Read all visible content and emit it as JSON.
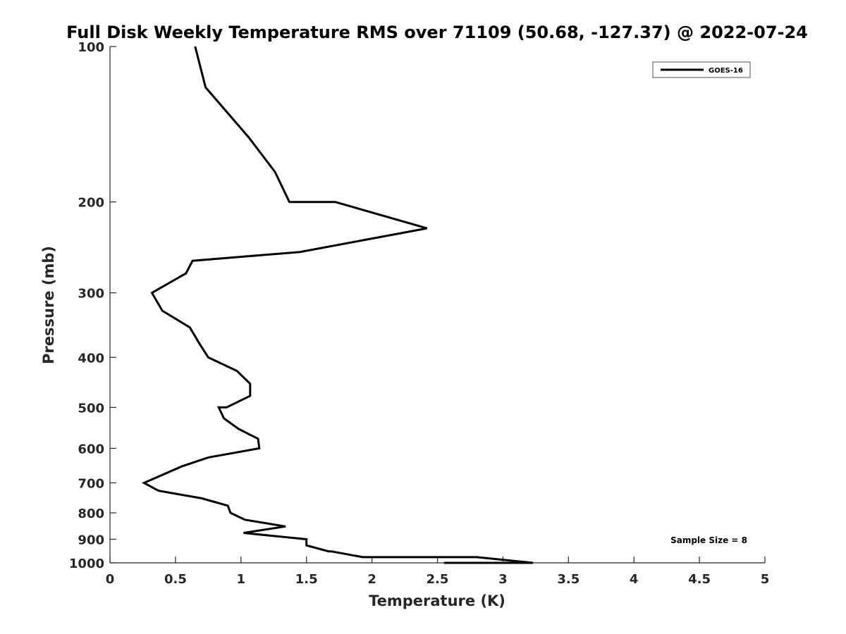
{
  "chart_data": {
    "type": "line",
    "title": "Full Disk Weekly Temperature RMS over 71109 (50.68, -127.37) @ 2022-07-24",
    "xlabel": "Temperature (K)",
    "ylabel": "Pressure (mb)",
    "xlim": [
      0,
      5
    ],
    "ylim": [
      100,
      1000
    ],
    "y_scale": "log",
    "y_reversed": true,
    "x_ticks": [
      "0",
      "0.5",
      "1",
      "1.5",
      "2",
      "2.5",
      "3",
      "3.5",
      "4",
      "4.5",
      "5"
    ],
    "y_ticks": [
      "100",
      "200",
      "300",
      "400",
      "500",
      "600",
      "700",
      "800",
      "900",
      "1000"
    ],
    "grid": false,
    "legend_position": "top-right",
    "annotation": "Sample Size = 8",
    "series": [
      {
        "name": "GOES-16",
        "color": "#000000",
        "points": [
          [
            0.65,
            100
          ],
          [
            0.73,
            120
          ],
          [
            1.06,
            150
          ],
          [
            1.26,
            175
          ],
          [
            1.37,
            200
          ],
          [
            1.72,
            200
          ],
          [
            2.42,
            225
          ],
          [
            1.45,
            250
          ],
          [
            0.63,
            260
          ],
          [
            0.58,
            275
          ],
          [
            0.32,
            300
          ],
          [
            0.4,
            325
          ],
          [
            0.61,
            350
          ],
          [
            0.68,
            375
          ],
          [
            0.75,
            400
          ],
          [
            0.97,
            425
          ],
          [
            1.07,
            450
          ],
          [
            1.07,
            475
          ],
          [
            0.89,
            500
          ],
          [
            0.83,
            500
          ],
          [
            0.87,
            525
          ],
          [
            0.98,
            550
          ],
          [
            1.13,
            575
          ],
          [
            1.14,
            600
          ],
          [
            0.75,
            625
          ],
          [
            0.55,
            650
          ],
          [
            0.26,
            700
          ],
          [
            0.37,
            725
          ],
          [
            0.7,
            750
          ],
          [
            0.9,
            775
          ],
          [
            0.92,
            800
          ],
          [
            1.03,
            825
          ],
          [
            1.34,
            850
          ],
          [
            1.02,
            875
          ],
          [
            1.5,
            900
          ],
          [
            1.5,
            925
          ],
          [
            1.67,
            950
          ],
          [
            1.69,
            950
          ],
          [
            1.93,
            975
          ],
          [
            2.8,
            975
          ],
          [
            3.23,
            1000
          ],
          [
            2.55,
            1000
          ]
        ]
      }
    ]
  }
}
